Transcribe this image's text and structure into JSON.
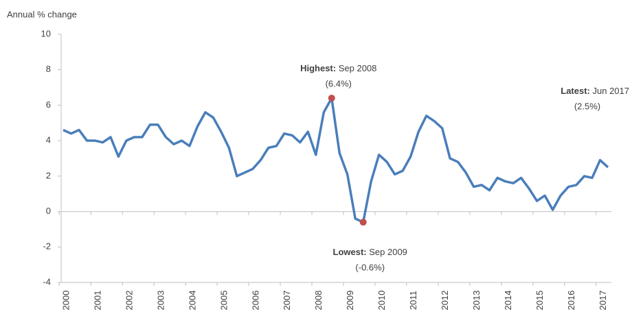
{
  "chart_data": {
    "type": "line",
    "y_label": "Annual % change",
    "categories": [
      "2000",
      null,
      null,
      null,
      "2001",
      null,
      null,
      null,
      "2002",
      null,
      null,
      null,
      "2003",
      null,
      null,
      null,
      "2004",
      null,
      null,
      null,
      "2005",
      null,
      null,
      null,
      "2006",
      null,
      null,
      null,
      "2007",
      null,
      null,
      null,
      "2008",
      null,
      null,
      null,
      "2009",
      null,
      null,
      null,
      "2010",
      null,
      null,
      null,
      "2011",
      null,
      null,
      null,
      "2012",
      null,
      null,
      null,
      "2013",
      null,
      null,
      null,
      "2014",
      null,
      null,
      null,
      "2015",
      null,
      null,
      null,
      "2016",
      null,
      null,
      null,
      "2017",
      null
    ],
    "values": [
      4.6,
      4.4,
      4.6,
      4.0,
      4.0,
      3.9,
      4.2,
      3.1,
      4.0,
      4.2,
      4.2,
      4.9,
      4.9,
      4.2,
      3.8,
      4.0,
      3.7,
      4.8,
      5.6,
      5.3,
      4.5,
      3.6,
      2.0,
      2.2,
      2.4,
      2.9,
      3.6,
      3.7,
      4.4,
      4.3,
      3.9,
      4.5,
      3.2,
      5.6,
      6.4,
      3.3,
      2.1,
      -0.4,
      -0.6,
      1.7,
      3.2,
      2.8,
      2.1,
      2.3,
      3.1,
      4.5,
      5.4,
      5.1,
      4.7,
      3.0,
      2.8,
      2.2,
      1.4,
      1.5,
      1.2,
      1.9,
      1.7,
      1.6,
      1.9,
      1.3,
      0.6,
      0.9,
      0.1,
      0.9,
      1.4,
      1.5,
      2.0,
      1.9,
      2.9,
      2.5
    ],
    "color": "#4a7ebb",
    "marker_color": "#c0504d",
    "ylim": [
      -4,
      10
    ],
    "yticks": [
      -4,
      -2,
      0,
      2,
      4,
      6,
      8,
      10
    ],
    "annotations": [
      {
        "label": "Highest:",
        "text": "Sep 2008",
        "note": "(6.4%)",
        "marker": true
      },
      {
        "label": "Lowest:",
        "text": "Sep 2009",
        "note": "(-0.6%)",
        "marker": true
      },
      {
        "label": "Latest:",
        "text": "Jun 2017",
        "note": "(2.5%)",
        "marker": false
      }
    ]
  }
}
